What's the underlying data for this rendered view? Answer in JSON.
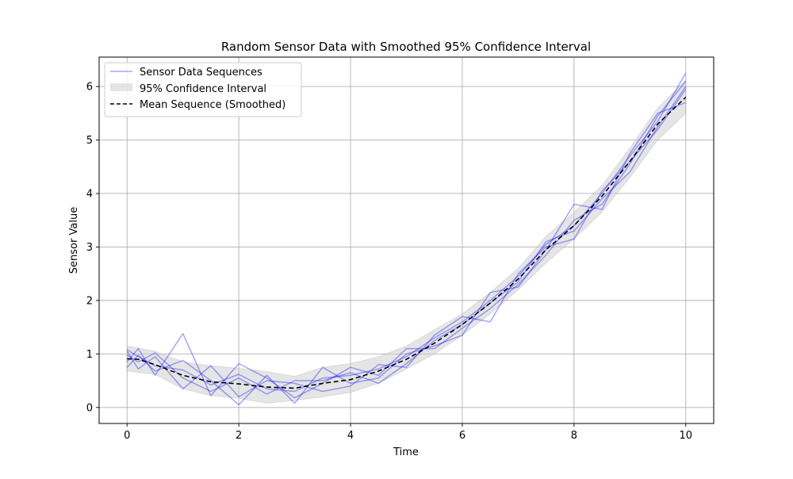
{
  "chart_data": {
    "type": "line",
    "title": "Random Sensor Data with Smoothed 95% Confidence Interval",
    "xlabel": "Time",
    "ylabel": "Sensor Value",
    "xlim": [
      -0.5,
      10.5
    ],
    "ylim": [
      -0.3,
      6.55
    ],
    "xticks": [
      0,
      2,
      4,
      6,
      8,
      10
    ],
    "yticks": [
      0,
      1,
      2,
      3,
      4,
      5,
      6
    ],
    "grid": true,
    "legend_position": "top-left",
    "colors": {
      "sensor": "#0000ff",
      "band": "#cccccc",
      "mean": "#000000",
      "grid": "#b0b0b0"
    },
    "legend": [
      {
        "label": "Sensor Data Sequences",
        "kind": "line",
        "color": "#0000ff"
      },
      {
        "label": "95% Confidence Interval",
        "kind": "patch",
        "color": "#cccccc"
      },
      {
        "label": "Mean Sequence (Smoothed)",
        "kind": "dashed",
        "color": "#000000"
      }
    ],
    "mean_series": {
      "name": "Mean Sequence (Smoothed)",
      "x": [
        0,
        0.2,
        0.5,
        1.0,
        1.5,
        2.0,
        2.5,
        3.0,
        3.5,
        4.0,
        4.5,
        5.0,
        5.5,
        6.0,
        6.5,
        7.0,
        7.5,
        8.0,
        8.5,
        9.0,
        9.5,
        10.0
      ],
      "y": [
        0.91,
        0.9,
        0.8,
        0.6,
        0.48,
        0.44,
        0.38,
        0.36,
        0.45,
        0.52,
        0.68,
        0.9,
        1.2,
        1.55,
        1.95,
        2.4,
        2.95,
        3.4,
        3.95,
        4.6,
        5.3,
        5.8
      ]
    },
    "confidence_band": {
      "name": "95% Confidence Interval",
      "x": [
        0,
        0.5,
        1.0,
        1.5,
        2.0,
        2.5,
        3.0,
        3.5,
        4.0,
        4.5,
        5.0,
        5.5,
        6.0,
        6.5,
        7.0,
        7.5,
        8.0,
        8.5,
        9.0,
        9.5,
        10.0
      ],
      "lower": [
        0.68,
        0.62,
        0.35,
        0.22,
        0.17,
        0.08,
        0.13,
        0.2,
        0.28,
        0.45,
        0.72,
        1.0,
        1.35,
        1.75,
        2.2,
        2.7,
        3.15,
        3.65,
        4.3,
        5.0,
        5.5
      ],
      "upper": [
        1.15,
        1.05,
        0.85,
        0.78,
        0.73,
        0.67,
        0.58,
        0.75,
        0.82,
        0.95,
        1.15,
        1.45,
        1.75,
        2.15,
        2.6,
        3.2,
        3.65,
        4.15,
        4.85,
        5.6,
        6.12
      ]
    },
    "sensor_series": [
      {
        "x": [
          0,
          0.2,
          0.5,
          1.0,
          1.5,
          2.0,
          2.5,
          3.0,
          3.5,
          4.0,
          4.5,
          5.0,
          5.5,
          6.0,
          6.5,
          7.0,
          7.5,
          8.0,
          8.5,
          9.0,
          9.5,
          10.0
        ],
        "y": [
          1.08,
          0.95,
          0.78,
          0.7,
          0.42,
          0.62,
          0.35,
          0.3,
          0.55,
          0.6,
          0.72,
          0.95,
          1.3,
          1.6,
          2.0,
          2.45,
          3.05,
          3.4,
          4.0,
          4.7,
          5.35,
          6.25
        ]
      },
      {
        "x": [
          0,
          0.2,
          0.5,
          1.0,
          1.5,
          2.0,
          2.5,
          3.0,
          3.5,
          4.0,
          4.5,
          5.0,
          5.5,
          6.0,
          6.5,
          7.0,
          7.5,
          8.0,
          8.5,
          9.0,
          9.5,
          10.0
        ],
        "y": [
          0.85,
          1.1,
          0.6,
          1.38,
          0.22,
          0.82,
          0.55,
          0.18,
          0.45,
          0.75,
          0.6,
          1.1,
          1.1,
          1.48,
          1.85,
          2.3,
          2.85,
          3.5,
          3.8,
          4.55,
          5.45,
          6.1
        ]
      },
      {
        "x": [
          0,
          0.2,
          0.5,
          1.0,
          1.5,
          2.0,
          2.5,
          3.0,
          3.5,
          4.0,
          4.5,
          5.0,
          5.5,
          6.0,
          6.5,
          7.0,
          7.5,
          8.0,
          8.5,
          9.0,
          9.5,
          10.0
        ],
        "y": [
          1.05,
          0.72,
          0.95,
          0.35,
          0.78,
          0.2,
          0.5,
          0.45,
          0.3,
          0.4,
          0.8,
          0.75,
          1.35,
          1.7,
          1.6,
          2.5,
          3.0,
          3.15,
          4.05,
          4.6,
          5.2,
          5.95
        ]
      },
      {
        "x": [
          0,
          0.2,
          0.5,
          1.0,
          1.5,
          2.0,
          2.5,
          3.0,
          3.5,
          4.0,
          4.5,
          5.0,
          5.5,
          6.0,
          6.5,
          7.0,
          7.5,
          8.0,
          8.5,
          9.0,
          9.5,
          10.0
        ],
        "y": [
          0.75,
          0.98,
          0.68,
          0.88,
          0.5,
          0.05,
          0.6,
          0.08,
          0.75,
          0.45,
          0.55,
          1.0,
          1.15,
          1.35,
          2.15,
          2.25,
          2.95,
          3.8,
          3.7,
          4.75,
          5.5,
          5.7
        ]
      },
      {
        "x": [
          0,
          0.2,
          0.5,
          1.0,
          1.5,
          2.0,
          2.5,
          3.0,
          3.5,
          4.0,
          4.5,
          5.0,
          5.5,
          6.0,
          6.5,
          7.0,
          7.5,
          8.0,
          8.5,
          9.0,
          9.5,
          10.0
        ],
        "y": [
          0.98,
          0.85,
          1.02,
          0.55,
          0.3,
          0.55,
          0.25,
          0.5,
          0.5,
          0.65,
          0.45,
          0.82,
          1.25,
          1.55,
          1.95,
          2.35,
          3.1,
          3.3,
          3.9,
          4.4,
          5.25,
          6.0
        ]
      }
    ]
  }
}
